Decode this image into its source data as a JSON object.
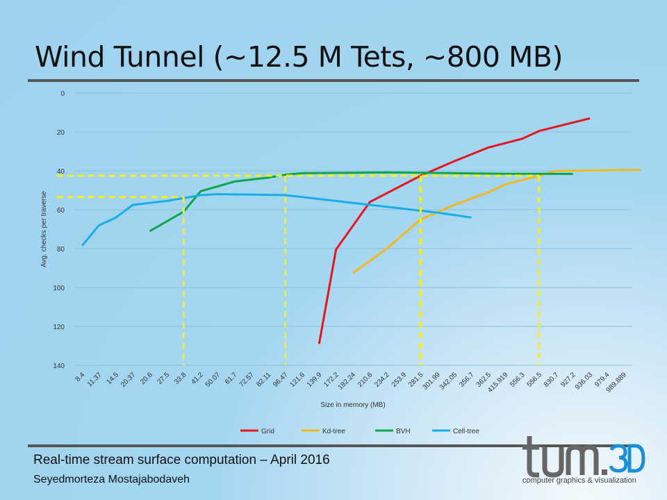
{
  "slide": {
    "title": "Wind Tunnel (~12.5 M Tets, ~800 MB)",
    "footer_line1": "Real-time stream surface computation – April 2016",
    "footer_line2": "Seyedmorteza Mostajabodaveh",
    "logo_text": "tum.3D",
    "logo_caption": "computer graphics & visualization"
  },
  "chart_data": {
    "type": "line",
    "xlabel": "Size in memory  (MB)",
    "ylabel": "Avg. checks per traverse",
    "y_reversed": true,
    "ylim": [
      0,
      140
    ],
    "yticks": [
      0,
      20,
      40,
      60,
      80,
      100,
      120,
      140
    ],
    "categories": [
      "8.4",
      "11.37",
      "14.5",
      "20.37",
      "20.6",
      "27.5",
      "33.8",
      "41.2",
      "50.07",
      "61.7",
      "72.57",
      "82.11",
      "96.47",
      "121.6",
      "139.9",
      "172.2",
      "182.24",
      "210.6",
      "234.2",
      "253.9",
      "281.5",
      "301.99",
      "342.05",
      "356.7",
      "362.5",
      "415.919",
      "556.3",
      "556.5",
      "830.7",
      "927.2",
      "936.03",
      "979.4",
      "989.889"
    ],
    "legend_position": "bottom",
    "grid": true,
    "series": [
      {
        "name": "Grid",
        "color": "#e8141d",
        "points": [
          [
            14,
            129
          ],
          [
            15,
            80.5
          ],
          [
            17,
            56
          ],
          [
            20,
            42.5
          ],
          [
            22,
            35
          ],
          [
            24,
            28
          ],
          [
            26,
            23.5
          ],
          [
            27,
            19.5
          ],
          [
            30,
            13
          ]
        ]
      },
      {
        "name": "Kd-tree",
        "color": "#f2b821",
        "points": [
          [
            16,
            92.5
          ],
          [
            18,
            80
          ],
          [
            20,
            65
          ],
          [
            22,
            57.5
          ],
          [
            24,
            51
          ],
          [
            25,
            47
          ],
          [
            27,
            42.5
          ],
          [
            28,
            40
          ],
          [
            33,
            39.5
          ]
        ]
      },
      {
        "name": "BVH",
        "color": "#0aa64a",
        "points": [
          [
            4,
            71
          ],
          [
            6,
            61
          ],
          [
            7,
            50.5
          ],
          [
            9,
            45.5
          ],
          [
            11,
            43.5
          ],
          [
            12,
            42
          ],
          [
            13,
            41.2
          ],
          [
            16,
            41
          ],
          [
            18,
            40.8
          ],
          [
            20,
            41
          ],
          [
            22,
            41.2
          ],
          [
            25,
            41.5
          ],
          [
            27,
            41.5
          ],
          [
            29,
            41.6
          ]
        ]
      },
      {
        "name": "Cell-tree",
        "color": "#17aee6",
        "points": [
          [
            0,
            78.5
          ],
          [
            1,
            68
          ],
          [
            2,
            64
          ],
          [
            3,
            57.5
          ],
          [
            5,
            55.5
          ],
          [
            6,
            54
          ],
          [
            7,
            52.5
          ],
          [
            8,
            52
          ],
          [
            10,
            52.2
          ],
          [
            12,
            52.5
          ],
          [
            13,
            53.5
          ],
          [
            15,
            55.5
          ],
          [
            17,
            57.5
          ],
          [
            19,
            59.5
          ],
          [
            21,
            61.5
          ],
          [
            23,
            64
          ]
        ]
      }
    ],
    "reference_lines": {
      "color": "#f6ee1b",
      "horizontal": [
        {
          "y": 42.5,
          "x_from": 0,
          "x_to": 27
        },
        {
          "y": 53.5,
          "x_from": 0,
          "x_to": 6
        }
      ],
      "vertical": [
        {
          "x": 6,
          "y_from": 53.5
        },
        {
          "x": 12,
          "y_from": 42.5
        },
        {
          "x": 20,
          "y_from": 42.5
        },
        {
          "x": 27,
          "y_from": 42.5
        }
      ]
    }
  }
}
